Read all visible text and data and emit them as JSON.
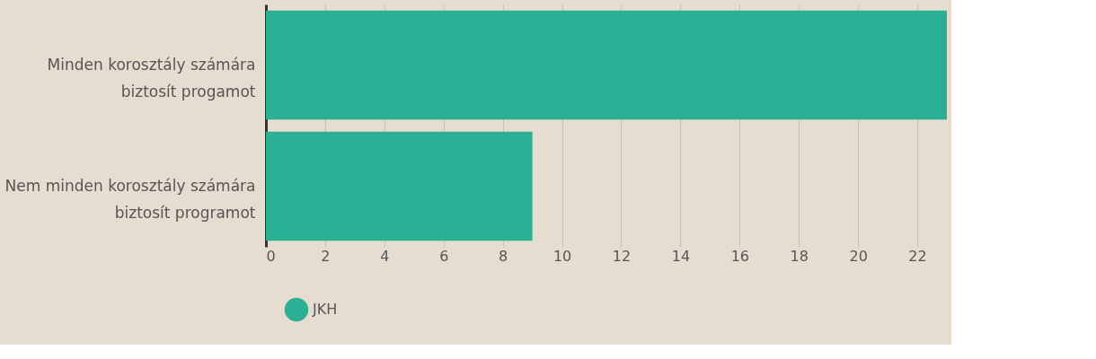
{
  "chart_data": {
    "type": "bar",
    "orientation": "horizontal",
    "categories": [
      "Minden korosztály számára biztosít progamot",
      "Nem minden korosztály számára biztosít programot"
    ],
    "series": [
      {
        "name": "JKH",
        "color": "#2bb096",
        "values": [
          23,
          9
        ]
      }
    ],
    "xlim": [
      0,
      23
    ],
    "xticks": [
      0,
      2,
      4,
      6,
      8,
      10,
      12,
      14,
      16,
      18,
      20,
      22
    ],
    "grid": "x",
    "legend": "bottom"
  }
}
